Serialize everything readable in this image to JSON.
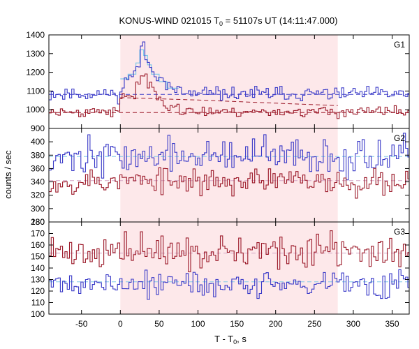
{
  "chart_data": {
    "type": "line",
    "title": {
      "prefix": "KONUS-WIND 021015 T",
      "sub": "0",
      "suffix": " = 51107s UT (14:11:47.000)"
    },
    "xlabel": {
      "prefix": "T - T",
      "sub": "0",
      "suffix": ", s"
    },
    "ylabel": "counts / sec",
    "xlim": [
      -92,
      372
    ],
    "x_ticks": [
      -50,
      0,
      50,
      100,
      150,
      200,
      250,
      300,
      350
    ],
    "shaded_interval": [
      0,
      280
    ],
    "colors": {
      "blue": "#3a3ac8",
      "red": "#9c1a2a",
      "cyan": "#7ec8e8",
      "shade": "#fde8ea",
      "pink": "#d4a4c4"
    },
    "panels": [
      {
        "label": "G1",
        "ylim": [
          900,
          1400
        ],
        "y_ticks": [
          900,
          1000,
          1100,
          1200,
          1300,
          1400
        ],
        "y_tick_labels": [
          "900",
          "1000",
          "1100",
          "1200",
          "1300",
          "1400"
        ],
        "series": [
          {
            "color": "blue",
            "base": 1085,
            "noise": 18,
            "seed": 11,
            "pulse": [
              [
                -10,
                5,
                1085
              ],
              [
                5,
                20,
                1180
              ],
              [
                20,
                25,
                1240
              ],
              [
                25,
                30,
                1320
              ],
              [
                30,
                33,
                1340
              ],
              [
                33,
                38,
                1270
              ],
              [
                38,
                45,
                1215
              ],
              [
                45,
                55,
                1180
              ],
              [
                55,
                65,
                1135
              ],
              [
                65,
                80,
                1100
              ]
            ]
          },
          {
            "color": "red",
            "base": 990,
            "noise": 14,
            "seed": 23,
            "pulse": [
              [
                0,
                10,
                1060
              ],
              [
                10,
                20,
                1080
              ],
              [
                20,
                25,
                1140
              ],
              [
                25,
                35,
                1185
              ],
              [
                35,
                42,
                1130
              ],
              [
                42,
                55,
                1060
              ],
              [
                55,
                75,
                1030
              ]
            ]
          }
        ],
        "dashed": [
          {
            "color": "blue",
            "points": [
              [
                -92,
                1082
              ],
              [
                372,
                1082
              ]
            ]
          },
          {
            "color": "red",
            "points": [
              [
                0,
                1065
              ],
              [
                100,
                1052
              ],
              [
                200,
                1035
              ],
              [
                280,
                1022
              ]
            ]
          },
          {
            "color": "red",
            "points": [
              [
                -92,
                985
              ],
              [
                372,
                985
              ]
            ]
          }
        ],
        "model": {
          "color": "cyan",
          "steps": [
            [
              0,
              10,
              1165
            ],
            [
              10,
              20,
              1190
            ],
            [
              20,
              25,
              1250
            ],
            [
              25,
              30,
              1320
            ],
            [
              30,
              35,
              1290
            ],
            [
              35,
              40,
              1240
            ],
            [
              40,
              50,
              1190
            ],
            [
              50,
              60,
              1150
            ],
            [
              60,
              75,
              1115
            ]
          ]
        }
      },
      {
        "label": "G2",
        "ylim": [
          280,
          420
        ],
        "y_ticks": [
          280,
          300,
          320,
          340,
          360,
          380,
          400
        ],
        "y_tick_labels": [
          "280",
          "300",
          "320",
          "340",
          "360",
          "380",
          "400"
        ],
        "series": [
          {
            "color": "blue",
            "base": 378,
            "noise": 13,
            "seed": 37,
            "pulse": []
          },
          {
            "color": "red",
            "base": 341,
            "noise": 10,
            "seed": 53,
            "pulse": []
          }
        ],
        "dashed": [
          {
            "color": "cyan",
            "points": [
              [
                -92,
                378
              ],
              [
                372,
                378
              ]
            ]
          },
          {
            "color": "pink",
            "points": [
              [
                -92,
                342
              ],
              [
                372,
                342
              ]
            ]
          }
        ],
        "model": null
      },
      {
        "label": "G3",
        "ylim": [
          100,
          180
        ],
        "y_ticks": [
          100,
          110,
          120,
          130,
          140,
          150,
          160,
          170,
          180
        ],
        "y_tick_labels": [
          "100",
          "110",
          "120",
          "130",
          "140",
          "150",
          "160",
          "170",
          "180"
        ],
        "series": [
          {
            "color": "red",
            "base": 154,
            "noise": 7,
            "seed": 71,
            "pulse": []
          },
          {
            "color": "blue",
            "base": 126,
            "noise": 6,
            "seed": 89,
            "pulse": []
          }
        ],
        "dashed": [
          {
            "color": "pink",
            "points": [
              [
                -92,
                153
              ],
              [
                372,
                153
              ]
            ]
          },
          {
            "color": "cyan",
            "points": [
              [
                -92,
                128
              ],
              [
                372,
                128
              ]
            ]
          }
        ],
        "model": null
      }
    ]
  }
}
